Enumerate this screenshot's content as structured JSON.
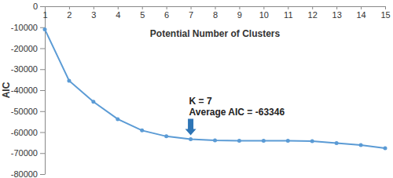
{
  "chart_data": {
    "type": "line",
    "x_label": "Potential Number of Clusters",
    "y_label": "AIC",
    "x": [
      1,
      2,
      3,
      4,
      5,
      6,
      7,
      8,
      9,
      10,
      11,
      12,
      13,
      14,
      15
    ],
    "values": [
      -11000,
      -35500,
      -45500,
      -53800,
      -59200,
      -62000,
      -63346,
      -63900,
      -64100,
      -64100,
      -64100,
      -64300,
      -65200,
      -66200,
      -67700
    ],
    "color": "#5b9bd5",
    "marker": "circle",
    "line_style": "solid",
    "grid": false,
    "xlim": [
      1,
      15
    ],
    "xticks": [
      1,
      2,
      3,
      4,
      5,
      6,
      7,
      8,
      9,
      10,
      11,
      12,
      13,
      14,
      15
    ],
    "ylim": [
      -80000,
      0
    ],
    "yticks": [
      0,
      -10000,
      -20000,
      -30000,
      -40000,
      -50000,
      -60000,
      -70000,
      -80000
    ],
    "annotation": {
      "x": 7,
      "lines": [
        "K = 7",
        "Average AIC = -63346"
      ]
    }
  }
}
